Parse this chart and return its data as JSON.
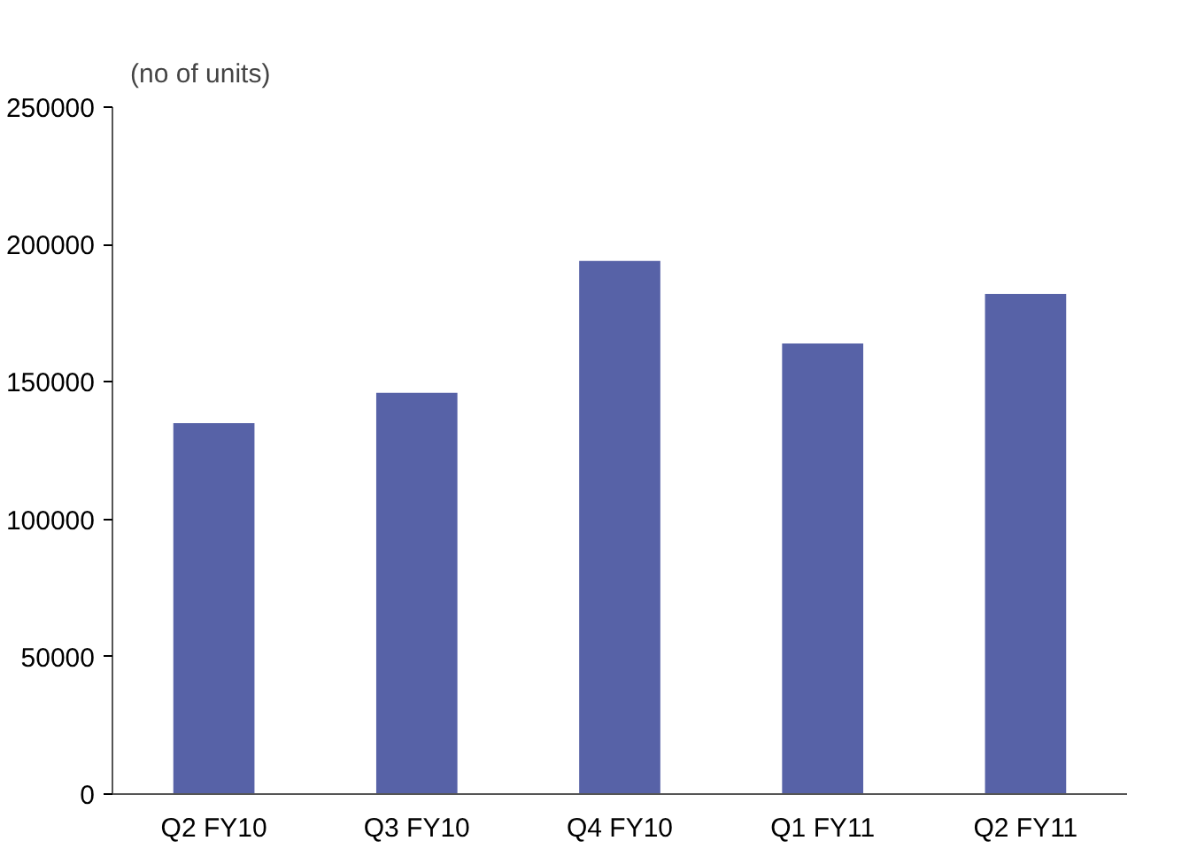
{
  "chart_data": {
    "type": "bar",
    "ylabel": "(no of units)",
    "categories": [
      "Q2 FY10",
      "Q3 FY10",
      "Q4 FY10",
      "Q1 FY11",
      "Q2 FY11"
    ],
    "values": [
      135000,
      146000,
      194000,
      164000,
      182000
    ],
    "color": "#5762a7",
    "ylim": [
      0,
      250000
    ],
    "yticks": [
      0,
      50000,
      100000,
      150000,
      200000,
      250000
    ],
    "grid": false
  }
}
